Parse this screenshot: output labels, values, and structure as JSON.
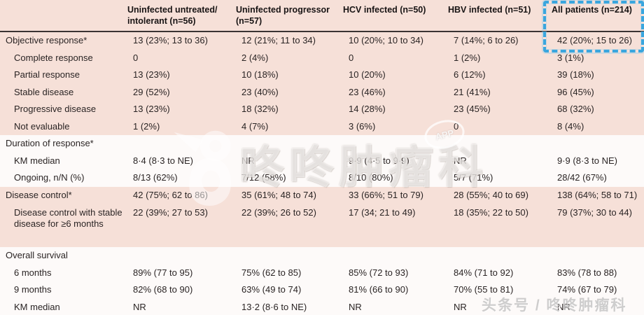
{
  "header": {
    "columns": [
      "Uninfected untreated/ intolerant (n=56)",
      "Uninfected progressor (n=57)",
      "HCV infected (n=50)",
      "HBV infected (n=51)",
      "All patients (n=214)"
    ]
  },
  "rows": [
    {
      "label": "Objective response*",
      "indent": false,
      "shade": "pink",
      "values": [
        "13 (23%; 13 to 36)",
        "12 (21%; 11 to 34)",
        "10 (20%; 10 to 34)",
        "7 (14%; 6 to 26)",
        "42 (20%; 15 to 26)"
      ]
    },
    {
      "label": "Complete response",
      "indent": true,
      "shade": "pink",
      "values": [
        "0",
        "2 (4%)",
        "0",
        "1 (2%)",
        "3 (1%)"
      ]
    },
    {
      "label": "Partial response",
      "indent": true,
      "shade": "pink",
      "values": [
        "13 (23%)",
        "10 (18%)",
        "10 (20%)",
        "6 (12%)",
        "39 (18%)"
      ]
    },
    {
      "label": "Stable disease",
      "indent": true,
      "shade": "pink",
      "values": [
        "29 (52%)",
        "23 (40%)",
        "23 (46%)",
        "21 (41%)",
        "96 (45%)"
      ]
    },
    {
      "label": "Progressive disease",
      "indent": true,
      "shade": "pink",
      "values": [
        "13 (23%)",
        "18 (32%)",
        "14 (28%)",
        "23 (45%)",
        "68 (32%)"
      ]
    },
    {
      "label": "Not evaluable",
      "indent": true,
      "shade": "pink",
      "values": [
        "1 (2%)",
        "4 (7%)",
        "3 (6%)",
        "0",
        "8 (4%)"
      ]
    },
    {
      "label": "Duration of response*",
      "indent": false,
      "shade": "white",
      "values": [
        "",
        "",
        "",
        "",
        ""
      ]
    },
    {
      "label": "KM median",
      "indent": true,
      "shade": "white",
      "values": [
        "8·4 (8·3 to NE)",
        "NR",
        "9·9 (4·5 to 9·9)",
        "NR",
        "9·9 (8·3 to NE)"
      ]
    },
    {
      "label": "Ongoing, n/N (%)",
      "indent": true,
      "shade": "white",
      "values": [
        "8/13 (62%)",
        "7/12 (58%)",
        "8/10 (80%)",
        "5/7 (71%)",
        "28/42 (67%)"
      ]
    },
    {
      "label": "Disease control*",
      "indent": false,
      "shade": "pink",
      "values": [
        "42 (75%; 62 to 86)",
        "35 (61%; 48 to 74)",
        "33 (66%; 51 to 79)",
        "28 (55%; 40 to 69)",
        "138 (64%; 58 to 71)"
      ]
    },
    {
      "label": "Disease control with stable disease for ≥6 months",
      "indent": true,
      "shade": "pink",
      "tall": true,
      "values": [
        "22 (39%; 27 to 53)",
        "22 (39%; 26 to 52)",
        "17 (34; 21 to 49)",
        "18 (35%; 22 to 50)",
        "79 (37%; 30 to 44)"
      ]
    },
    {
      "label": "Overall survival",
      "indent": false,
      "shade": "white",
      "values": [
        "",
        "",
        "",
        "",
        ""
      ]
    },
    {
      "label": "6 months",
      "indent": true,
      "shade": "white",
      "values": [
        "89% (77 to 95)",
        "75% (62 to 85)",
        "85% (72 to 93)",
        "84% (71 to 92)",
        "83% (78 to 88)"
      ]
    },
    {
      "label": "9 months",
      "indent": true,
      "shade": "white",
      "values": [
        "82% (68 to 90)",
        "63% (49 to 74)",
        "81% (66 to 90)",
        "70% (55 to 81)",
        "74% (67 to 79)"
      ]
    },
    {
      "label": "KM median",
      "indent": true,
      "shade": "white",
      "values": [
        "NR",
        "13·2 (8·6 to NE)",
        "NR",
        "NR",
        "NR"
      ]
    }
  ],
  "watermark": {
    "center_text": "咚咚肿瘤科",
    "badge_text": "APP",
    "corner_text": "头条号 / 咚咚肿瘤科"
  },
  "colors": {
    "band_pink": "#f6e0d8",
    "band_white": "#fdfaf9",
    "text": "#2a2424",
    "rule": "#3a3333",
    "highlight_blue": "#3aa6de"
  }
}
